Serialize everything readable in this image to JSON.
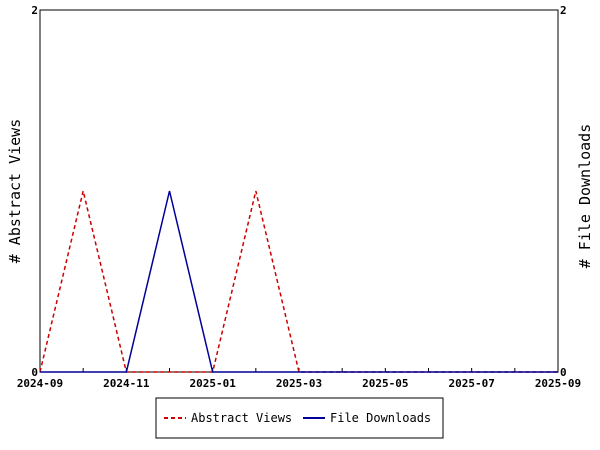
{
  "chart_data": {
    "type": "line",
    "x": [
      "2024-09",
      "2024-10",
      "2024-11",
      "2024-12",
      "2025-01",
      "2025-02",
      "2025-03",
      "2025-04",
      "2025-05",
      "2025-06",
      "2025-07",
      "2025-08",
      "2025-09"
    ],
    "x_tick_labels": [
      "2024-09",
      "2024-11",
      "2025-01",
      "2025-03",
      "2025-05",
      "2025-07",
      "2025-09"
    ],
    "series": [
      {
        "name": "Abstract Views",
        "axis": "left",
        "color": "#cc0000",
        "dash": "dashed",
        "values": [
          0,
          1,
          0,
          0,
          0,
          1,
          0,
          0,
          0,
          0,
          0,
          0,
          0
        ]
      },
      {
        "name": "File Downloads",
        "axis": "right",
        "color": "#000099",
        "dash": "solid",
        "values": [
          0,
          0,
          0,
          1,
          0,
          0,
          0,
          0,
          0,
          0,
          0,
          0,
          0
        ]
      }
    ],
    "ylabel_left": "# Abstract Views",
    "ylabel_right": "# File Downloads",
    "ylim_left": [
      0,
      2
    ],
    "ylim_right": [
      0,
      2
    ],
    "y_tick_labels_left": [
      "0",
      "2"
    ],
    "y_tick_labels_right": [
      "0",
      "2"
    ],
    "grid": false,
    "legend_position": "bottom"
  }
}
